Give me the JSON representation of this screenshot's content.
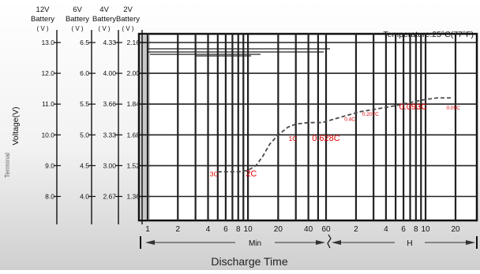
{
  "chart_data": {
    "type": "line",
    "title": "",
    "temperature_label": "Temperature:25°C(77°F)",
    "battery_columns": [
      {
        "name": "12V Battery",
        "line1": "12V",
        "line2": "Battery",
        "unit": "( V )",
        "ticks": [
          "13.0",
          "12.0",
          "11.0",
          "10.0",
          "9.0",
          "8.0"
        ]
      },
      {
        "name": "6V Battery",
        "line1": "6V",
        "line2": "Battery",
        "unit": "( V )",
        "ticks": [
          "6.5",
          "6.0",
          "5.5",
          "5.0",
          "4.5",
          "4.0"
        ]
      },
      {
        "name": "4V Battery",
        "line1": "4V",
        "line2": "Battery",
        "unit": "( V )",
        "ticks": [
          "4.33",
          "4.00",
          "3.66",
          "3.33",
          "3.00",
          "2.67"
        ]
      },
      {
        "name": "2V Battery",
        "line1": "2V",
        "line2": "Battery",
        "unit": "( V )",
        "ticks": [
          "2.16",
          "2.00",
          "1.84",
          "1.68",
          "1.52",
          "1.36"
        ]
      }
    ],
    "y_ticks_12v": [
      13.0,
      12.0,
      11.0,
      10.0,
      9.0,
      8.0
    ],
    "ylabel": "Voltage(V)",
    "ylabel_secondary": "Terminal",
    "ylim": [
      7.6,
      13.5
    ],
    "x_axis": {
      "min_ticks": [
        "1",
        "2",
        "4",
        "6",
        "8",
        "10",
        "20",
        "40",
        "60"
      ],
      "hour_ticks": [
        "2",
        "4",
        "6",
        "8",
        "10",
        "20"
      ],
      "min_label": "Min",
      "hour_label": "H",
      "xlabel": "Discharge Time"
    },
    "curve_points_min": [
      [
        5.0,
        8.8
      ],
      [
        8.0,
        8.8
      ],
      [
        10.0,
        8.85
      ],
      [
        12.0,
        9.0
      ],
      [
        14.0,
        9.3
      ],
      [
        16.5,
        9.7
      ],
      [
        20.0,
        10.0
      ],
      [
        25.0,
        10.25
      ],
      [
        30.0,
        10.35
      ],
      [
        40.0,
        10.4
      ],
      [
        55.0,
        10.4
      ],
      [
        70.0,
        10.5
      ],
      [
        90.0,
        10.6
      ],
      [
        130.0,
        10.75
      ],
      [
        200.0,
        10.85
      ],
      [
        300.0,
        10.95
      ],
      [
        420.0,
        11.05
      ],
      [
        600.0,
        11.15
      ],
      [
        780.0,
        11.2
      ],
      [
        1080.0,
        11.2
      ]
    ],
    "rate_labels": [
      {
        "text": "3C",
        "x_min": 4.6,
        "v": 8.65,
        "size": "small"
      },
      {
        "text": "2C",
        "x_min": 10.8,
        "v": 8.65,
        "size": "large"
      },
      {
        "text": "1C",
        "x_min": 28.0,
        "v": 9.8,
        "size": "small"
      },
      {
        "text": "0.628C",
        "x_min": 60.0,
        "v": 9.8,
        "size": "large"
      },
      {
        "text": "0.4C",
        "x_min": 104.0,
        "v": 10.45,
        "size": "tiny"
      },
      {
        "text": "0.207C",
        "x_min": 168.0,
        "v": 10.62,
        "size": "tiny"
      },
      {
        "text": "0.093C",
        "x_min": 450.0,
        "v": 10.82,
        "size": "large"
      },
      {
        "text": "0.05C",
        "x_min": 1140.0,
        "v": 10.82,
        "size": "tiny"
      }
    ],
    "series": [],
    "grid": true,
    "colors": {
      "curve": "#4a4a4a",
      "grid": "#222222",
      "rate_label": "#e00000",
      "plot_bg": "#ffffff"
    }
  }
}
